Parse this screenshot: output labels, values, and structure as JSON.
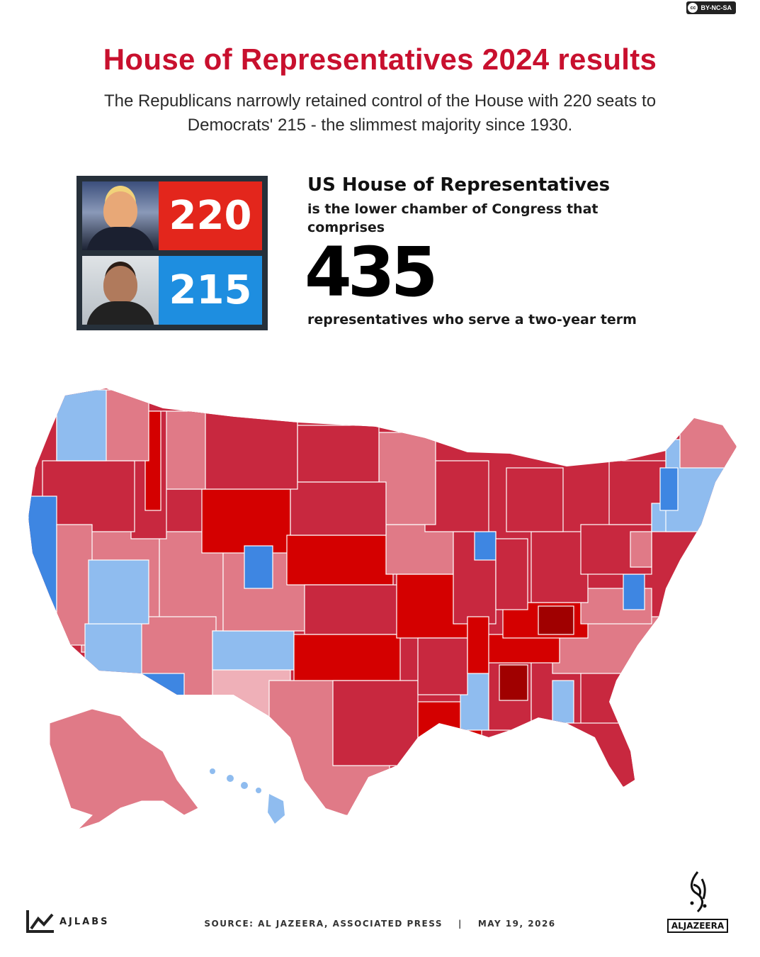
{
  "license": {
    "label": "BY-NC-SA",
    "icon": "cc-icon"
  },
  "title": "House of Representatives 2024 results",
  "subtitle": {
    "line1": "The Republicans narrowly retained control of the House with 220 seats to",
    "line2": "Democrats' 215 - the slimmest majority since 1930."
  },
  "scoreboard": {
    "republican": {
      "seats": "220",
      "color": "#e3261c"
    },
    "democrat": {
      "seats": "215",
      "color": "#1e8ee0"
    }
  },
  "info": {
    "heading": "US House of Representatives",
    "line1": "is the lower chamber of Congress that",
    "line2": "comprises",
    "number": "435",
    "line3": "representatives who serve a two-year term"
  },
  "map": {
    "colors": {
      "strong_republican": "#d40000",
      "republican": "#c8283f",
      "lean_republican": "#e07a87",
      "likely_republican": "#efb0b8",
      "lean_democrat": "#8fbcef",
      "democrat": "#3e86e2",
      "strong_republican_dark": "#a00000"
    }
  },
  "footer": {
    "brand": "AJLABS",
    "source": "SOURCE:  AL JAZEERA, ASSOCIATED PRESS",
    "separator": "|",
    "date": "MAY 19, 2026",
    "logo_text": "ALJAZEERA"
  }
}
